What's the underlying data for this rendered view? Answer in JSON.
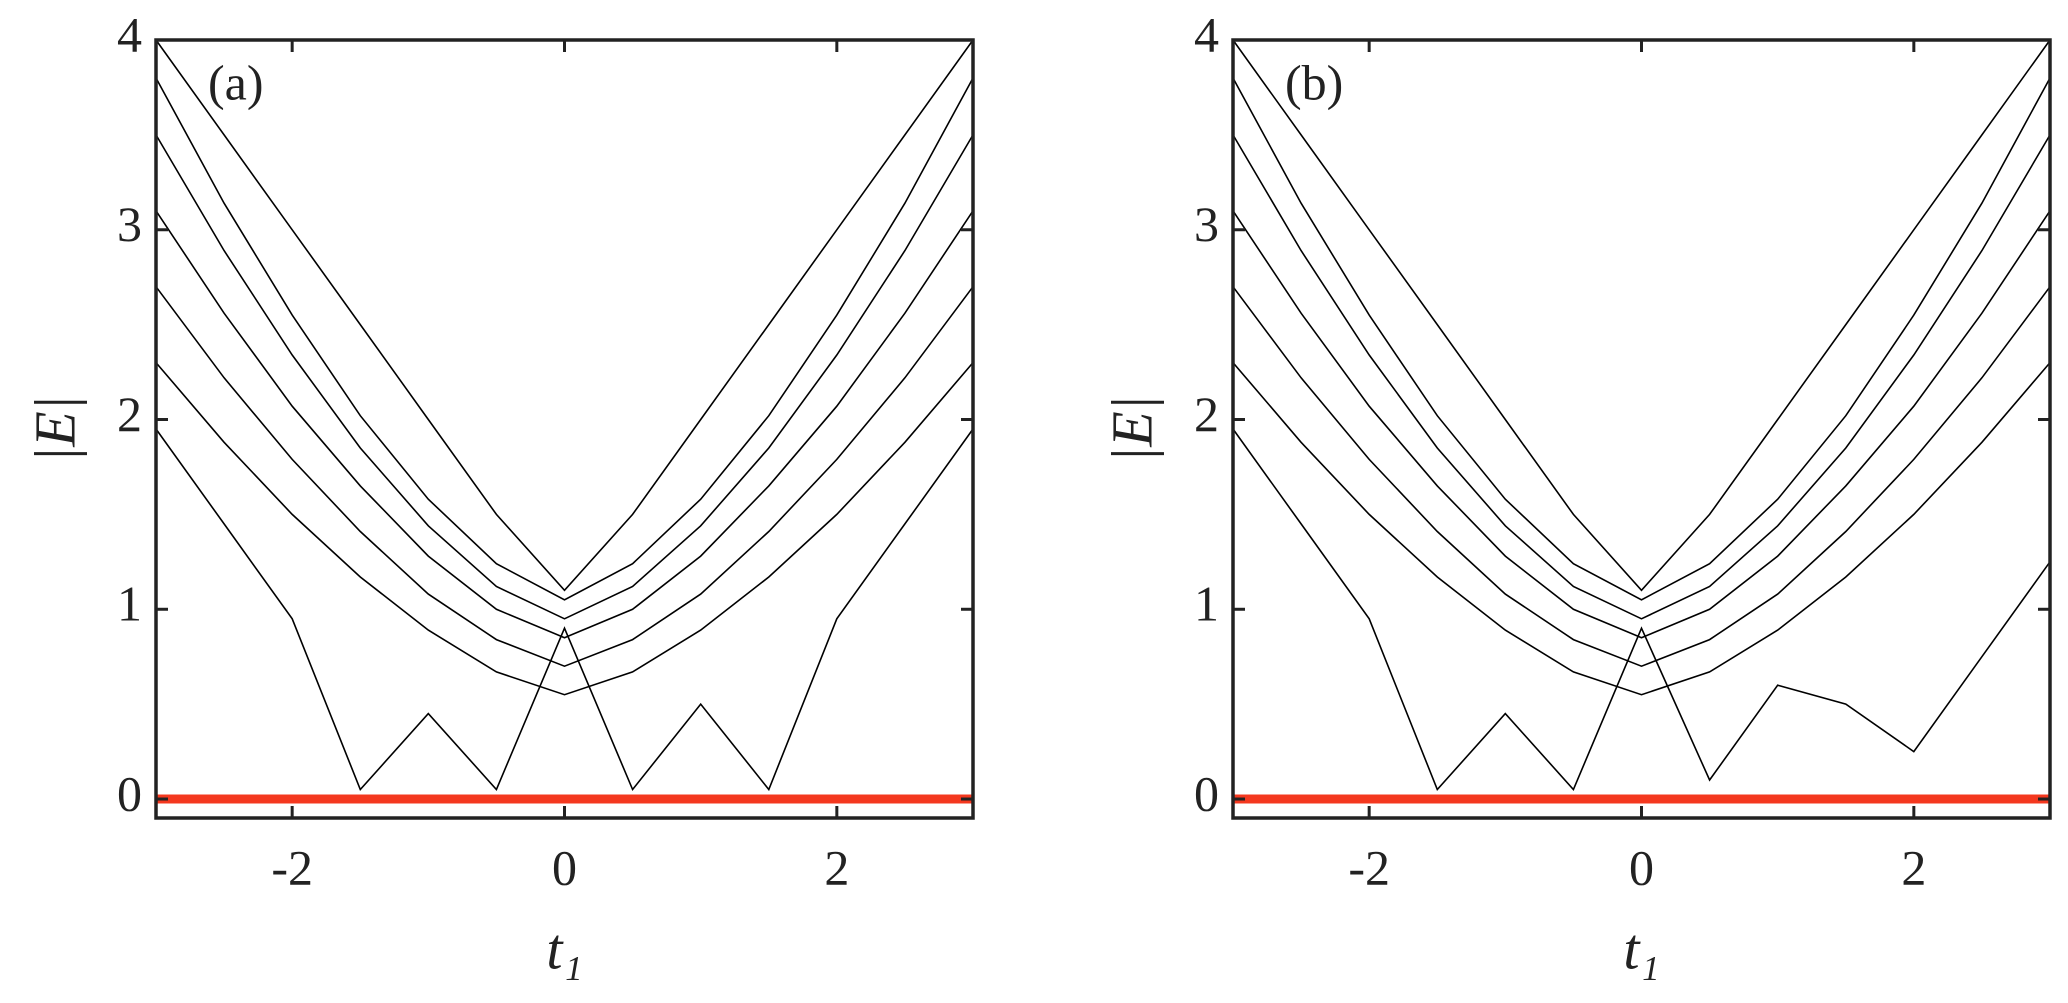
{
  "chart_data": [
    {
      "type": "line",
      "panel_label": "(a)",
      "y_label": "|E|",
      "x_label": "t₁",
      "xlim": [
        -3,
        3
      ],
      "ylim": [
        -0.1,
        4
      ],
      "xticks": [
        -2,
        0,
        2
      ],
      "yticks": [
        0,
        1,
        2,
        3,
        4
      ],
      "x": [
        -3,
        -2.5,
        -2,
        -1.5,
        -1,
        -0.5,
        0,
        0.5,
        1,
        1.5,
        2,
        2.5,
        3
      ],
      "series": [
        {
          "color": "#000000",
          "values": [
            4,
            3.5,
            3.0,
            2.5,
            2.0,
            1.5,
            1.1,
            1.5,
            2.0,
            2.5,
            3.0,
            3.5,
            4
          ]
        },
        {
          "color": "#000000",
          "values": [
            3.8,
            3.14,
            2.55,
            2.02,
            1.58,
            1.24,
            1.05,
            1.24,
            1.58,
            2.02,
            2.55,
            3.14,
            3.8
          ]
        },
        {
          "color": "#000000",
          "values": [
            3.5,
            2.89,
            2.34,
            1.85,
            1.44,
            1.12,
            0.95,
            1.12,
            1.44,
            1.85,
            2.34,
            2.89,
            3.5
          ]
        },
        {
          "color": "#000000",
          "values": [
            3.1,
            2.56,
            2.07,
            1.65,
            1.28,
            1.0,
            0.85,
            1.0,
            1.28,
            1.65,
            2.07,
            2.56,
            3.1
          ]
        },
        {
          "color": "#000000",
          "values": [
            2.7,
            2.22,
            1.79,
            1.41,
            1.08,
            0.84,
            0.7,
            0.84,
            1.08,
            1.41,
            1.79,
            2.22,
            2.7
          ]
        },
        {
          "color": "#000000",
          "values": [
            2.3,
            1.88,
            1.5,
            1.17,
            0.89,
            0.67,
            0.55,
            0.67,
            0.89,
            1.17,
            1.5,
            1.88,
            2.3
          ]
        },
        {
          "color": "#000000",
          "values": [
            1.95,
            1.45,
            0.95,
            0.05,
            0.45,
            0.05,
            0.9,
            0.05,
            0.5,
            0.05,
            0.95,
            1.45,
            1.95
          ]
        }
      ],
      "zero_line": {
        "color": "#f4381f",
        "x": [
          -3,
          3
        ],
        "values": [
          0,
          0
        ]
      }
    },
    {
      "type": "line",
      "panel_label": "(b)",
      "y_label": "|E|",
      "x_label": "t₁",
      "xlim": [
        -3,
        3
      ],
      "ylim": [
        -0.1,
        4
      ],
      "xticks": [
        -2,
        0,
        2
      ],
      "yticks": [
        0,
        1,
        2,
        3,
        4
      ],
      "x": [
        -3,
        -2.5,
        -2,
        -1.5,
        -1,
        -0.5,
        0,
        0.5,
        1,
        1.5,
        2,
        2.5,
        3
      ],
      "series": [
        {
          "color": "#000000",
          "values": [
            4,
            3.5,
            3.0,
            2.5,
            2.0,
            1.5,
            1.1,
            1.5,
            2.0,
            2.5,
            3.0,
            3.5,
            4
          ]
        },
        {
          "color": "#000000",
          "values": [
            3.8,
            3.14,
            2.55,
            2.02,
            1.58,
            1.24,
            1.05,
            1.24,
            1.58,
            2.02,
            2.55,
            3.14,
            3.8
          ]
        },
        {
          "color": "#000000",
          "values": [
            3.5,
            2.89,
            2.34,
            1.85,
            1.44,
            1.12,
            0.95,
            1.12,
            1.44,
            1.85,
            2.34,
            2.89,
            3.5
          ]
        },
        {
          "color": "#000000",
          "values": [
            3.1,
            2.56,
            2.07,
            1.65,
            1.28,
            1.0,
            0.85,
            1.0,
            1.28,
            1.65,
            2.07,
            2.56,
            3.1
          ]
        },
        {
          "color": "#000000",
          "values": [
            2.7,
            2.22,
            1.79,
            1.41,
            1.08,
            0.84,
            0.7,
            0.84,
            1.08,
            1.41,
            1.79,
            2.22,
            2.7
          ]
        },
        {
          "color": "#000000",
          "values": [
            2.3,
            1.88,
            1.5,
            1.17,
            0.89,
            0.67,
            0.55,
            0.67,
            0.89,
            1.17,
            1.5,
            1.88,
            2.3
          ]
        },
        {
          "color": "#000000",
          "values": [
            1.95,
            1.45,
            0.95,
            0.05,
            0.45,
            0.05,
            0.9,
            0.1,
            0.6,
            0.5,
            0.25,
            0.75,
            1.25
          ]
        }
      ],
      "zero_line": {
        "color": "#f4381f",
        "x": [
          -3,
          3
        ],
        "values": [
          0,
          0
        ]
      }
    }
  ]
}
